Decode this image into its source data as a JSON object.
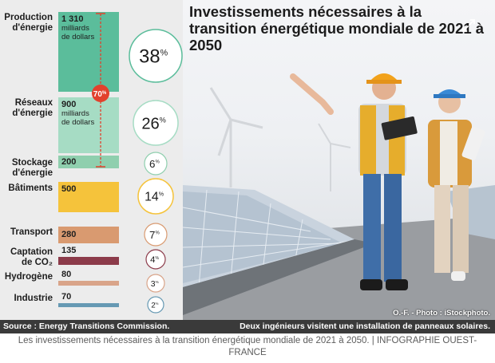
{
  "headline": "Investissements nécessaires à la transition énergétique mondiale de 2021 à 2050",
  "photo": {
    "credit": "O.-F. - Photo : iStockphoto.",
    "caption": "Deux ingénieurs visitent une installation de panneaux solaires."
  },
  "source": "Source : Energy Transitions Commission.",
  "figcaption": "Les investissements nécessaires à la transition énergétique mondiale de 2021 à 2050. | INFOGRAPHIE OUEST-FRANCE",
  "icons": {
    "expand": "expand-arrows-icon"
  },
  "chart_data": {
    "type": "bar",
    "orientation": "horizontal",
    "unit": "milliards de dollars",
    "categories": [
      "Production\nd'énergie",
      "Réseaux\nd'énergie",
      "Stockage\nd'énergie",
      "Bâtiments",
      "Transport",
      "Captation\nde CO₂",
      "Hydrogène",
      "Industrie"
    ],
    "value_labels": [
      "1 310",
      "900",
      "200",
      "500",
      "280",
      "135",
      "80",
      "70"
    ],
    "values": [
      1310,
      900,
      200,
      500,
      280,
      135,
      80,
      70
    ],
    "unit_labels": [
      "milliards\nde dollars",
      "milliards\nde dollars",
      "",
      "",
      "",
      "",
      "",
      ""
    ],
    "percent_values": [
      38,
      26,
      6,
      14,
      7,
      4,
      3,
      2
    ],
    "percent_suffix": "%",
    "colors": [
      "#5bbd9b",
      "#a6dcc4",
      "#8fcfae",
      "#f5c33b",
      "#d99a70",
      "#8c3b4a",
      "#d9a489",
      "#6699b3"
    ],
    "bracket": {
      "label": "70",
      "suffix": "%",
      "color": "#e2412d",
      "spans_categories": [
        0,
        1,
        2
      ]
    }
  }
}
